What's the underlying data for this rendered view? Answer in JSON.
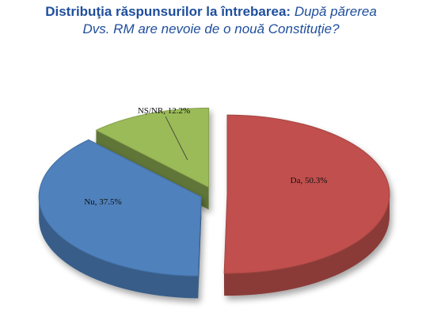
{
  "title": {
    "lead": "Distribuţia răspunsurilor la întrebarea:",
    "question_line1": "După părerea",
    "question_line2": "Dvs. RM are nevoie de o nouă Constituţie?"
  },
  "colors": {
    "title": "#1f4e9c"
  },
  "chart_data": {
    "type": "pie",
    "title": "Distribuţia răspunsurilor la întrebarea: După părerea Dvs. RM are nevoie de o nouă Constituţie?",
    "slices": [
      {
        "label": "Da",
        "value": 50.3,
        "text": "Da, 50.3%",
        "color": "#c0504d"
      },
      {
        "label": "Nu",
        "value": 37.5,
        "text": "Nu, 37.5%",
        "color": "#4f81bd"
      },
      {
        "label": "NȘ/NR",
        "value": 12.2,
        "text": "NȘ/NR, 12.2%",
        "color": "#9bbb59"
      }
    ],
    "three_d": true,
    "legend": "none"
  }
}
